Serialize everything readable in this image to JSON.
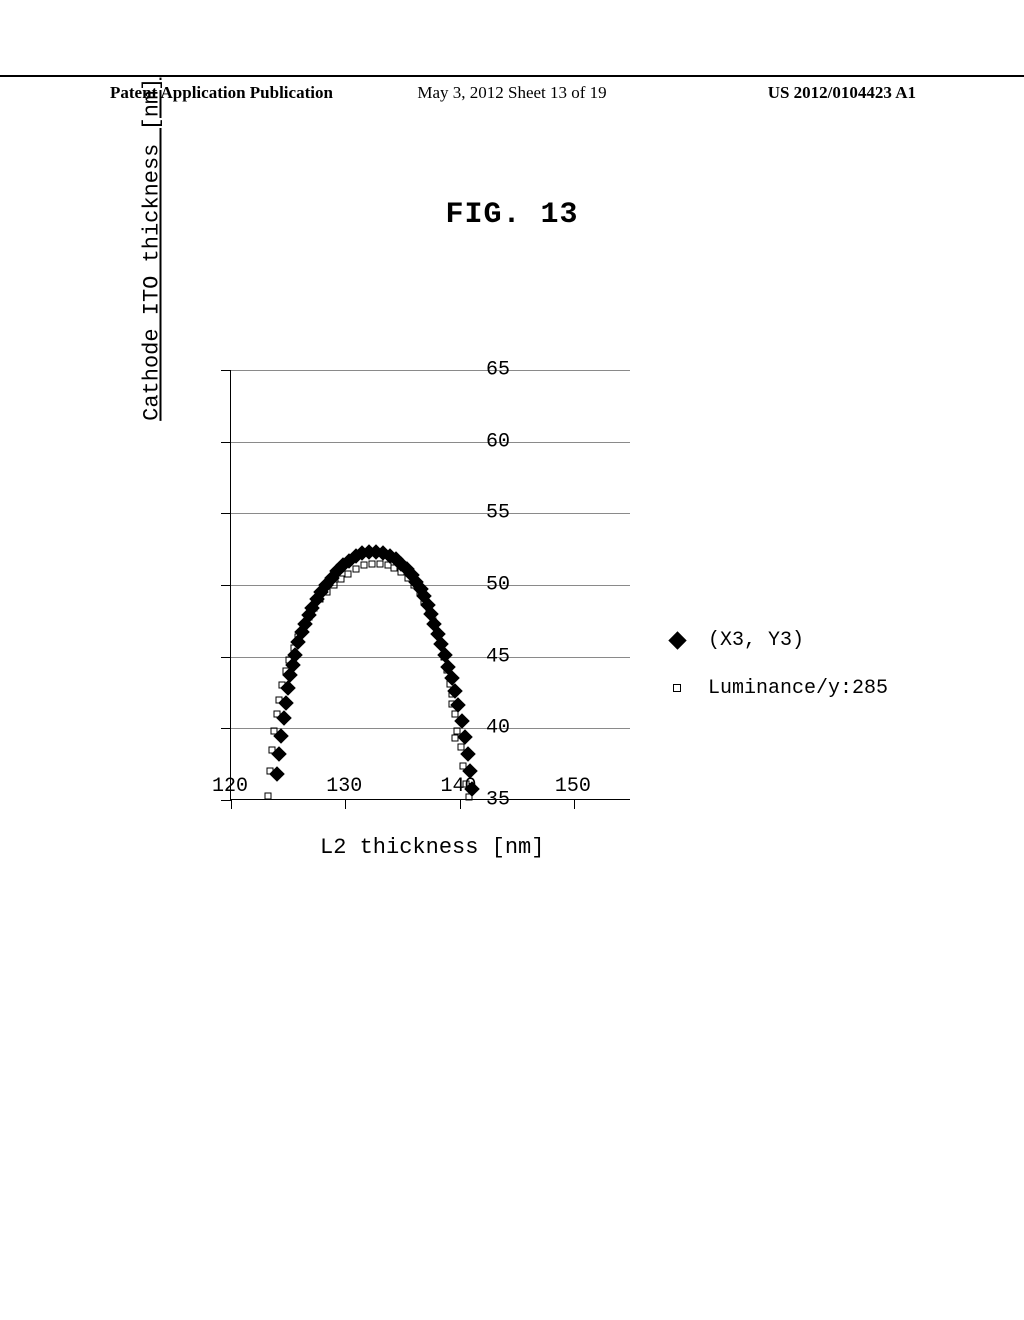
{
  "header": {
    "left": "Patent Application Publication",
    "center": "May 3, 2012  Sheet 13 of 19",
    "right": "US 2012/0104423 A1"
  },
  "figure": {
    "title": "FIG. 13",
    "y_axis_title": "Cathode ITO thickness [nm]",
    "x_axis_title": "L2 thickness [nm]",
    "xlim": [
      120,
      155
    ],
    "ylim": [
      35,
      65
    ],
    "x_ticks": [
      120,
      130,
      140,
      150
    ],
    "y_ticks": [
      35,
      40,
      45,
      50,
      55,
      60,
      65
    ],
    "gridlines_y": [
      40,
      45,
      50,
      55,
      60,
      65
    ],
    "grid_color": "#8a8a8a",
    "background_color": "#ffffff",
    "axis_fontsize": 20,
    "title_fontsize": 30,
    "label_fontsize": 22,
    "series": [
      {
        "name": "(X3, Y3)",
        "marker": "diamond-filled",
        "color": "#000000",
        "size": 11,
        "points": [
          [
            124.0,
            36.8
          ],
          [
            124.2,
            38.2
          ],
          [
            124.4,
            39.5
          ],
          [
            124.6,
            40.7
          ],
          [
            124.8,
            41.8
          ],
          [
            125.0,
            42.8
          ],
          [
            125.2,
            43.7
          ],
          [
            125.4,
            44.4
          ],
          [
            125.6,
            45.1
          ],
          [
            125.9,
            46.0
          ],
          [
            126.2,
            46.7
          ],
          [
            126.5,
            47.3
          ],
          [
            126.8,
            47.9
          ],
          [
            127.1,
            48.4
          ],
          [
            127.5,
            49.0
          ],
          [
            127.9,
            49.5
          ],
          [
            128.3,
            50.0
          ],
          [
            128.8,
            50.5
          ],
          [
            129.3,
            51.0
          ],
          [
            129.8,
            51.4
          ],
          [
            130.3,
            51.7
          ],
          [
            130.9,
            52.0
          ],
          [
            131.5,
            52.2
          ],
          [
            132.1,
            52.3
          ],
          [
            132.7,
            52.3
          ],
          [
            133.3,
            52.2
          ],
          [
            133.9,
            52.0
          ],
          [
            134.4,
            51.8
          ],
          [
            134.9,
            51.5
          ],
          [
            135.4,
            51.1
          ],
          [
            135.8,
            50.7
          ],
          [
            136.2,
            50.2
          ],
          [
            136.6,
            49.7
          ],
          [
            136.9,
            49.2
          ],
          [
            137.2,
            48.6
          ],
          [
            137.5,
            48.0
          ],
          [
            137.8,
            47.3
          ],
          [
            138.1,
            46.6
          ],
          [
            138.4,
            45.9
          ],
          [
            138.7,
            45.1
          ],
          [
            139.0,
            44.3
          ],
          [
            139.3,
            43.5
          ],
          [
            139.6,
            42.6
          ],
          [
            139.9,
            41.6
          ],
          [
            140.2,
            40.5
          ],
          [
            140.5,
            39.4
          ],
          [
            140.7,
            38.2
          ],
          [
            140.9,
            37.0
          ],
          [
            141.1,
            35.8
          ]
        ]
      },
      {
        "name": "Luminance/y:285",
        "marker": "square-hollow",
        "color": "#000000",
        "size": 7,
        "points": [
          [
            123.2,
            35.3
          ],
          [
            123.4,
            37.0
          ],
          [
            123.6,
            38.5
          ],
          [
            123.8,
            39.8
          ],
          [
            124.0,
            41.0
          ],
          [
            124.2,
            42.0
          ],
          [
            124.5,
            43.0
          ],
          [
            124.8,
            44.0
          ],
          [
            125.1,
            44.8
          ],
          [
            125.5,
            45.6
          ],
          [
            125.9,
            46.4
          ],
          [
            126.3,
            47.1
          ],
          [
            126.8,
            47.8
          ],
          [
            127.3,
            48.4
          ],
          [
            127.8,
            49.0
          ],
          [
            128.4,
            49.5
          ],
          [
            129.0,
            50.0
          ],
          [
            129.6,
            50.4
          ],
          [
            130.2,
            50.8
          ],
          [
            130.9,
            51.1
          ],
          [
            131.6,
            51.4
          ],
          [
            132.3,
            51.5
          ],
          [
            133.0,
            51.5
          ],
          [
            133.7,
            51.4
          ],
          [
            134.3,
            51.2
          ],
          [
            134.9,
            50.9
          ],
          [
            135.5,
            50.5
          ],
          [
            136.0,
            50.0
          ],
          [
            136.5,
            49.5
          ],
          [
            136.9,
            48.9
          ],
          [
            137.3,
            48.2
          ],
          [
            137.7,
            47.5
          ],
          [
            138.0,
            46.7
          ],
          [
            138.3,
            45.9
          ],
          [
            138.6,
            45.0
          ],
          [
            138.9,
            44.1
          ],
          [
            139.2,
            43.1
          ],
          [
            139.3,
            42.4
          ],
          [
            139.3,
            41.7
          ],
          [
            139.6,
            41.0
          ],
          [
            139.8,
            39.8
          ],
          [
            139.6,
            39.3
          ],
          [
            140.1,
            38.7
          ],
          [
            140.3,
            37.4
          ],
          [
            140.6,
            36.1
          ],
          [
            140.8,
            35.2
          ]
        ]
      }
    ],
    "legend": {
      "items": [
        {
          "label": "(X3, Y3)",
          "marker": "diamond-filled"
        },
        {
          "label": "Luminance/y:285",
          "marker": "square-hollow"
        }
      ]
    }
  }
}
